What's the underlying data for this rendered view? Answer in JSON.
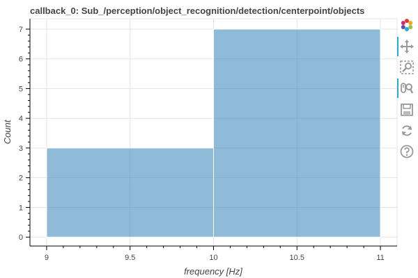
{
  "chart_data": {
    "type": "bar",
    "title": "callback_0: Sub_/perception/object_recognition/detection/centerpoint/objects",
    "xlabel": "frequency [Hz]",
    "ylabel": "Count",
    "bins": [
      {
        "left": 9,
        "right": 10,
        "count": 3
      },
      {
        "left": 10,
        "right": 11,
        "count": 7
      }
    ],
    "xlim": [
      8.9,
      11.1
    ],
    "ylim": [
      -0.3,
      7.35
    ],
    "xticks": [
      9,
      9.5,
      10,
      10.5,
      11
    ],
    "xtick_labels": [
      "9",
      "9.5",
      "10",
      "10.5",
      "11"
    ],
    "yticks": [
      0,
      1,
      2,
      3,
      4,
      5,
      6,
      7
    ],
    "ytick_labels": [
      "0",
      "1",
      "2",
      "3",
      "4",
      "5",
      "6",
      "7"
    ],
    "grid": true,
    "bar_color": "#1f77b4",
    "bar_alpha": 0.5
  },
  "toolbar": {
    "tools": [
      {
        "name": "bokeh-logo-icon",
        "active": false
      },
      {
        "name": "pan-icon",
        "active": true
      },
      {
        "name": "box-zoom-icon",
        "active": false
      },
      {
        "name": "wheel-zoom-icon",
        "active": true
      },
      {
        "name": "save-icon",
        "active": false
      },
      {
        "name": "reset-icon",
        "active": false
      },
      {
        "name": "help-icon",
        "active": false
      }
    ]
  }
}
